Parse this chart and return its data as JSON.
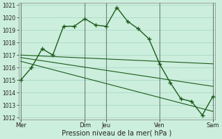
{
  "xlabel": "Pression niveau de la mer( hPa )",
  "background_color": "#cceedd",
  "grid_color": "#99ccbb",
  "line_color": "#1a5c1a",
  "ylim": [
    1012,
    1021
  ],
  "yticks": [
    1012,
    1013,
    1014,
    1015,
    1016,
    1017,
    1018,
    1019,
    1020,
    1021
  ],
  "xtick_labels": [
    "Mer",
    "Dim",
    "Jeu",
    "Ven",
    "Sam"
  ],
  "xtick_positions": [
    0,
    6,
    8,
    13,
    18
  ],
  "x_total": 18,
  "series": [
    {
      "x": [
        0,
        1,
        2,
        3,
        4,
        5,
        6,
        7,
        8,
        9,
        10,
        11,
        12,
        13,
        14,
        15,
        16,
        17,
        18
      ],
      "y": [
        1015.0,
        1016.0,
        1017.5,
        1017.0,
        1019.3,
        1019.3,
        1019.9,
        1019.4,
        1019.3,
        1020.8,
        1019.7,
        1019.1,
        1018.3,
        1016.3,
        1014.8,
        1013.5,
        1013.3,
        1012.2,
        1013.7
      ],
      "marker": "+",
      "markersize": 4,
      "linewidth": 1.0,
      "has_marker": true
    },
    {
      "x": [
        0,
        18
      ],
      "y": [
        1017.0,
        1016.3
      ],
      "marker": null,
      "linewidth": 0.8,
      "has_marker": false
    },
    {
      "x": [
        0,
        18
      ],
      "y": [
        1016.8,
        1014.5
      ],
      "marker": null,
      "linewidth": 0.8,
      "has_marker": false
    },
    {
      "x": [
        0,
        18
      ],
      "y": [
        1016.5,
        1012.5
      ],
      "marker": null,
      "linewidth": 0.8,
      "has_marker": false
    }
  ],
  "vlines": [
    0,
    6,
    8,
    13,
    18
  ],
  "vline_color": "#444444",
  "vline_linewidth": 0.8
}
